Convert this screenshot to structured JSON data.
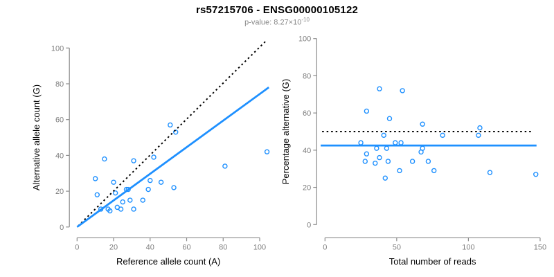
{
  "header": {
    "title": "rs57215706 - ENSG00000105122",
    "subtitle_main": "p-value: 8.27×10",
    "subtitle_exponent": "-10"
  },
  "colors": {
    "accent_blue": "#1E90FF",
    "identity_line": "#000000",
    "axis": "#8B8B8B",
    "tick_label": "#7E7E7E",
    "axis_title": "#000000",
    "title": "#000000",
    "subtitle": "#8A8A8A",
    "background": "#FFFFFF"
  },
  "chart_data": [
    {
      "type": "scatter",
      "name": "allele-counts",
      "title": "",
      "xlabel": "Reference allele count (A)",
      "ylabel": "Alternative allele count (G)",
      "xlim": [
        0,
        105
      ],
      "ylim": [
        0,
        105
      ],
      "xticks": [
        0,
        20,
        40,
        60,
        80,
        100
      ],
      "yticks": [
        0,
        20,
        40,
        60,
        80,
        100
      ],
      "grid": false,
      "legend": null,
      "marker": "open-circle",
      "points": [
        [
          10,
          27
        ],
        [
          11,
          18
        ],
        [
          13,
          10
        ],
        [
          15,
          38
        ],
        [
          17,
          10
        ],
        [
          18,
          9
        ],
        [
          20,
          25
        ],
        [
          21,
          19
        ],
        [
          22,
          11
        ],
        [
          24,
          10
        ],
        [
          25,
          14
        ],
        [
          27,
          21
        ],
        [
          28,
          21
        ],
        [
          29,
          15
        ],
        [
          31,
          10
        ],
        [
          31,
          37
        ],
        [
          36,
          15
        ],
        [
          39,
          21
        ],
        [
          40,
          26
        ],
        [
          42,
          39
        ],
        [
          46,
          25
        ],
        [
          51,
          57
        ],
        [
          53,
          22
        ],
        [
          54,
          53
        ],
        [
          81,
          34
        ],
        [
          104,
          42
        ]
      ],
      "lines": [
        {
          "name": "identity-line",
          "style": "dotted",
          "color_key": "identity_line",
          "x1": 0.5,
          "y1": 0.5,
          "x2": 104,
          "y2": 104.5
        },
        {
          "name": "regression-line",
          "style": "solid",
          "color_key": "accent_blue",
          "x1": 0,
          "y1": 0,
          "x2": 105,
          "y2": 78
        }
      ]
    },
    {
      "type": "scatter",
      "name": "percentage-vs-reads",
      "title": "",
      "xlabel": "Total number of reads",
      "ylabel": "Percentage alternative (G)",
      "xlim": [
        0,
        150
      ],
      "ylim": [
        0,
        100
      ],
      "xticks": [
        0,
        50,
        100,
        150
      ],
      "yticks": [
        0,
        20,
        40,
        60,
        80,
        100
      ],
      "grid": false,
      "legend": null,
      "marker": "open-circle",
      "points": [
        [
          25,
          44
        ],
        [
          28,
          34
        ],
        [
          29,
          38
        ],
        [
          29,
          61
        ],
        [
          35,
          33
        ],
        [
          36,
          41
        ],
        [
          38,
          36
        ],
        [
          38,
          73
        ],
        [
          41,
          48
        ],
        [
          42,
          25
        ],
        [
          43,
          41
        ],
        [
          44,
          34
        ],
        [
          45,
          57
        ],
        [
          49,
          44
        ],
        [
          52,
          29
        ],
        [
          53,
          44
        ],
        [
          54,
          72
        ],
        [
          61,
          34
        ],
        [
          67,
          39
        ],
        [
          68,
          41
        ],
        [
          68,
          54
        ],
        [
          72,
          34
        ],
        [
          76,
          29
        ],
        [
          82,
          48
        ],
        [
          107,
          48
        ],
        [
          108,
          52
        ],
        [
          115,
          28
        ],
        [
          147,
          27
        ]
      ],
      "lines": [
        {
          "name": "expected-50pct-line",
          "style": "dotted",
          "color_key": "identity_line",
          "x1": -2,
          "y1": 50,
          "x2": 144.5,
          "y2": 50
        },
        {
          "name": "fitted-mean-line",
          "style": "solid",
          "color_key": "accent_blue",
          "x1": -3,
          "y1": 42.5,
          "x2": 147.5,
          "y2": 42.5
        }
      ]
    }
  ]
}
